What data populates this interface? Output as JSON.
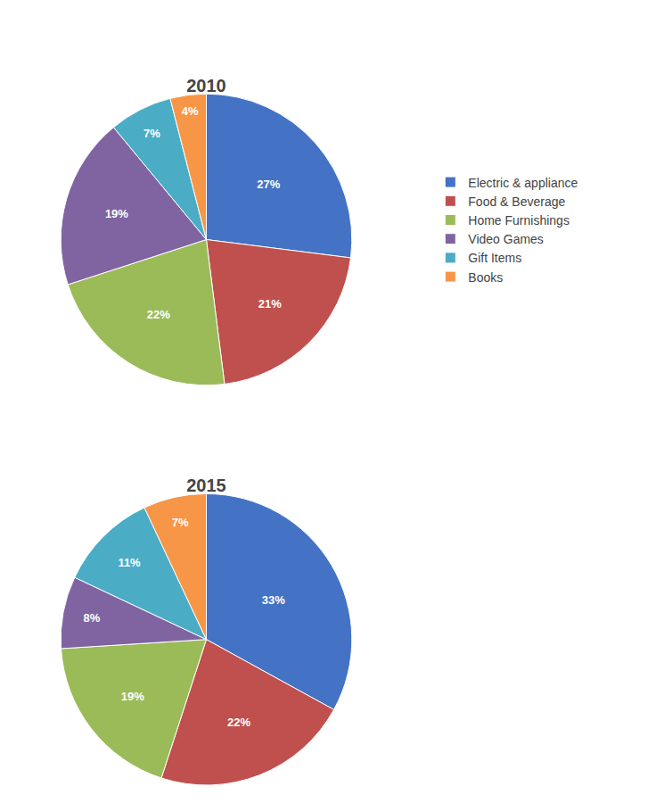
{
  "chart_data": [
    {
      "type": "pie",
      "title": "2010",
      "categories": [
        "Electric & appliance",
        "Food & Beverage",
        "Home Furnishings",
        "Video Games",
        "Gift Items",
        "Books"
      ],
      "values": [
        27,
        21,
        22,
        19,
        7,
        4
      ],
      "value_labels": [
        "27%",
        "21%",
        "22%",
        "19%",
        "7%",
        "4%"
      ],
      "colors": [
        "#4472C4",
        "#C0504D",
        "#9BBB59",
        "#8064A2",
        "#4BACC6",
        "#F79646"
      ],
      "data_labels": true,
      "legend": "right"
    },
    {
      "type": "pie",
      "title": "2015",
      "categories": [
        "Electric & appliance",
        "Food & Beverage",
        "Home Furnishings",
        "Video Games",
        "Gift Items",
        "Books"
      ],
      "values": [
        33,
        22,
        19,
        8,
        11,
        7
      ],
      "value_labels": [
        "33%",
        "22%",
        "19%",
        "8%",
        "11%",
        "7%"
      ],
      "colors": [
        "#4472C4",
        "#C0504D",
        "#9BBB59",
        "#8064A2",
        "#4BACC6",
        "#F79646"
      ],
      "data_labels": true,
      "legend": "right"
    }
  ]
}
